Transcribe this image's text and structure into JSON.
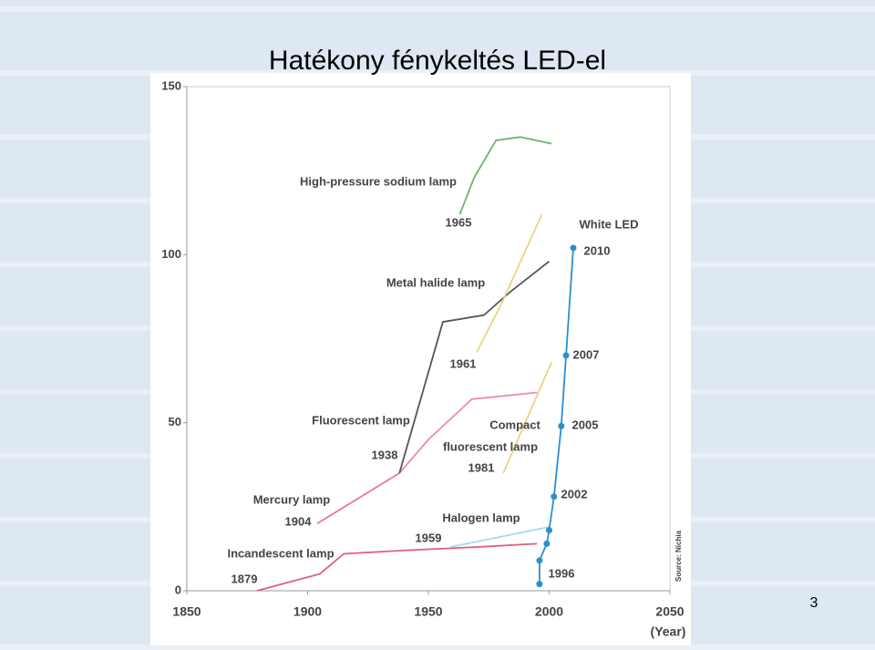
{
  "slide_title": "Hatékony fénykeltés LED-el",
  "slide_number": "3",
  "chart_data": {
    "type": "line",
    "x_label": "(Year)",
    "xlim": [
      1850,
      2050
    ],
    "xticks": [
      1850,
      1900,
      1950,
      2000,
      2050
    ],
    "ylim": [
      0,
      150
    ],
    "yticks": [
      0,
      50,
      100,
      150
    ],
    "series": [
      {
        "color": "#e0607a",
        "x": [
          1879,
          1905,
          1915,
          1940,
          1970,
          1995
        ],
        "y": [
          0,
          5,
          11,
          12,
          13,
          14
        ]
      },
      {
        "color": "#a8d8f0",
        "x": [
          1959,
          2000
        ],
        "y": [
          13,
          19
        ]
      },
      {
        "color": "#e87a90",
        "x": [
          1904,
          1938
        ],
        "y": [
          20,
          35
        ]
      },
      {
        "color": "#f08aa0",
        "x": [
          1938,
          1950,
          1968,
          1995
        ],
        "y": [
          35,
          45,
          57,
          59
        ]
      },
      {
        "color": "#555555",
        "x": [
          1938,
          1956,
          1973,
          1984,
          2000
        ],
        "y": [
          35,
          80,
          82,
          89,
          98
        ]
      },
      {
        "color": "#6db36d",
        "x": [
          1963,
          1969,
          1978,
          1988,
          2001
        ],
        "y": [
          112,
          123,
          134,
          135,
          133
        ]
      },
      {
        "color": "#f0d080",
        "x": [
          1970,
          1980,
          1997
        ],
        "y": [
          71,
          85,
          112
        ]
      },
      {
        "color": "#f0d080",
        "x": [
          1981,
          2001
        ],
        "y": [
          35,
          68
        ]
      },
      {
        "color": "#2a8fd0",
        "markers": true,
        "x": [
          1996,
          1996,
          1999,
          2000,
          2002,
          2005,
          2007,
          2010
        ],
        "y": [
          2,
          9,
          14,
          18,
          28,
          49,
          70,
          102
        ]
      }
    ],
    "annotations": [
      "High-pressure sodium lamp",
      "1965",
      "White LED",
      "2010",
      "Metal halide lamp",
      "1961",
      "2007",
      "Fluorescent lamp",
      "Compact",
      "fluorescent lamp",
      "2005",
      "1938",
      "1981",
      "Mercury lamp",
      "1904",
      "2002",
      "Halogen lamp",
      "1959",
      "Incandescent lamp",
      "1879",
      "1996",
      "Source: Nichia"
    ]
  }
}
